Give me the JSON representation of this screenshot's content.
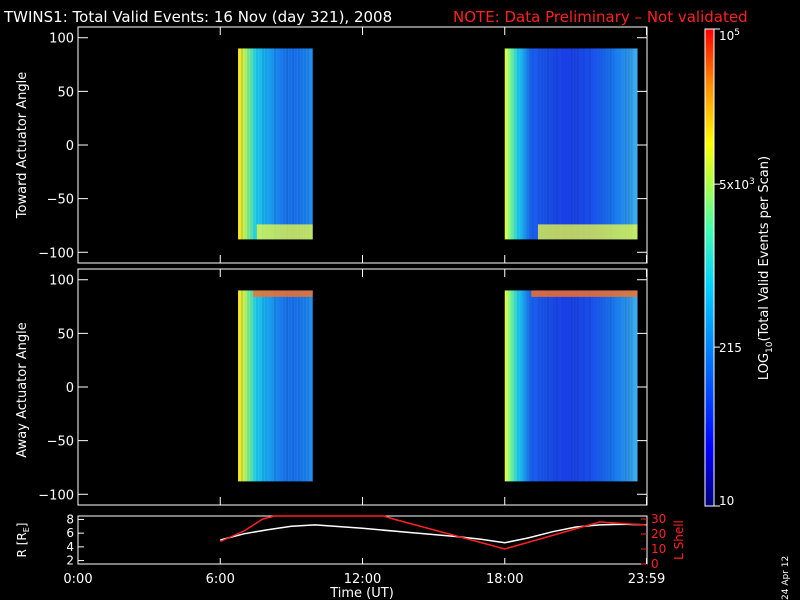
{
  "header": {
    "title": "TWINS1: Total Valid Events: 16 Nov (day 321), 2008",
    "note": "NOTE: Data Preliminary – Not validated"
  },
  "stamp": "24 Apr 12",
  "colors": {
    "background": "#000000",
    "axes": "#ffffff",
    "note": "#ff2020",
    "lshell": "#ff2020",
    "radius": "#ffffff"
  },
  "chart_data": [
    {
      "type": "heatmap",
      "panel": "toward",
      "ylabel": "Toward Actuator Angle",
      "ylim": [
        -110,
        110
      ],
      "yticks": [
        "100",
        "50",
        "0",
        "−50",
        "−100"
      ],
      "ytick_values": [
        100,
        50,
        0,
        -50,
        -100
      ],
      "xlim_hours": [
        0,
        24
      ],
      "angle_range": [
        -88,
        90
      ],
      "blocks": [
        {
          "start_hour": 6.75,
          "end_hour": 9.9
        },
        {
          "start_hour": 18.0,
          "end_hour": 23.6
        }
      ]
    },
    {
      "type": "heatmap",
      "panel": "away",
      "ylabel": "Away Actuator Angle",
      "ylim": [
        -110,
        110
      ],
      "yticks": [
        "100",
        "50",
        "0",
        "−50",
        "−100"
      ],
      "ytick_values": [
        100,
        50,
        0,
        -50,
        -100
      ],
      "xlim_hours": [
        0,
        24
      ],
      "angle_range": [
        -88,
        90
      ],
      "blocks": [
        {
          "start_hour": 6.75,
          "end_hour": 9.9
        },
        {
          "start_hour": 18.0,
          "end_hour": 23.6
        }
      ]
    },
    {
      "type": "line",
      "panel": "orbit",
      "ylabel_left": "R [R",
      "ylabel_left_sub": "E",
      "ylabel_left_end": "]",
      "ylabel_right": "L Shell",
      "left_ylim": [
        1.5,
        8.5
      ],
      "left_ticks": [
        "8",
        "6",
        "4",
        "2"
      ],
      "left_tick_values": [
        8,
        6,
        4,
        2
      ],
      "right_ylim": [
        0,
        32
      ],
      "right_ticks": [
        "30",
        "20",
        "10",
        "0"
      ],
      "right_tick_values": [
        30,
        20,
        10,
        0
      ],
      "xlabel": "Time (UT)",
      "xticks": [
        "0:00",
        "6:00",
        "12:00",
        "18:00",
        "23:59"
      ],
      "xtick_hours": [
        0,
        6,
        12,
        18,
        23.98
      ],
      "series": [
        {
          "axis": "left",
          "x": [
            6.0,
            7.0,
            8.0,
            9.0,
            10.0,
            12.0,
            14.0,
            16.0,
            17.0,
            18.0,
            19.0,
            20.0,
            21.0,
            22.0,
            23.0,
            23.98
          ],
          "y": [
            5.0,
            5.9,
            6.5,
            7.0,
            7.2,
            6.7,
            6.1,
            5.5,
            5.1,
            4.6,
            5.3,
            6.2,
            6.9,
            7.2,
            7.3,
            7.2
          ]
        },
        {
          "axis": "right",
          "x": [
            6.0,
            7.0,
            7.8,
            8.3,
            12.9,
            13.3,
            18.0,
            22.0,
            23.98
          ],
          "y": [
            15.0,
            22.0,
            30.0,
            32.0,
            32.0,
            30.0,
            10.0,
            28.0,
            26.0
          ]
        }
      ]
    }
  ],
  "colorbar": {
    "label": "LOG",
    "label_sub": "10",
    "label_end": "(Total Valid Events per Scan)",
    "ticks": [
      "10",
      "215",
      "5x10",
      "10"
    ],
    "tick_sups": [
      "",
      "",
      "3",
      "5"
    ],
    "tick_values": [
      10,
      215,
      5000,
      100000
    ],
    "range": [
      10,
      100000
    ]
  }
}
